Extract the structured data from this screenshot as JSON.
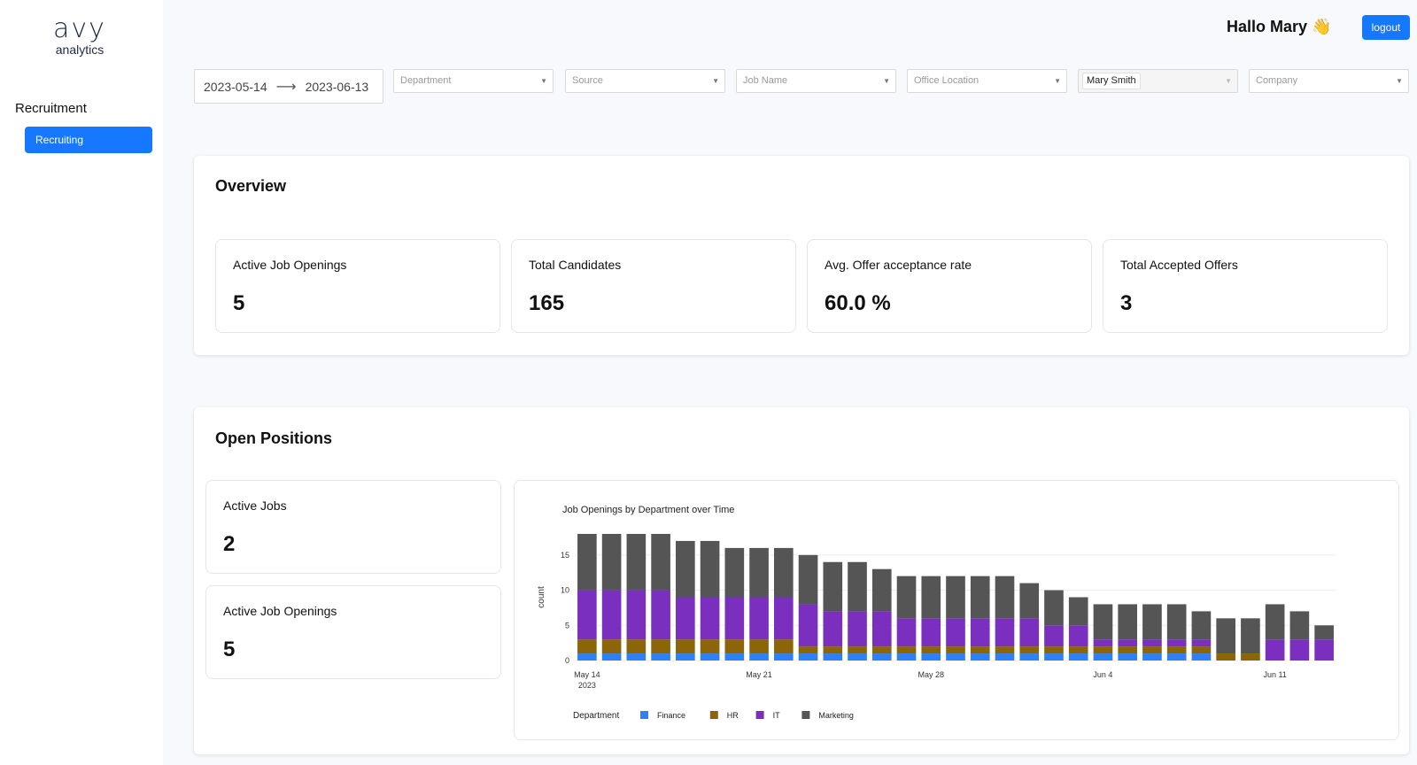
{
  "sidebar": {
    "logo_mark": "avy",
    "logo_sub": "analytics",
    "section_title": "Recruitment",
    "items": [
      {
        "label": "Recruiting",
        "active": true
      }
    ]
  },
  "header": {
    "greeting": "Hallo Mary 👋",
    "logout_label": "logout"
  },
  "filters": {
    "date_start": "2023-05-14",
    "date_end": "2023-06-13",
    "department_placeholder": "Department",
    "source_placeholder": "Source",
    "job_name_placeholder": "Job Name",
    "office_location_placeholder": "Office Location",
    "user_value": "Mary Smith",
    "company_placeholder": "Company"
  },
  "overview": {
    "title": "Overview",
    "metrics": [
      {
        "label": "Active Job Openings",
        "value": "5"
      },
      {
        "label": "Total Candidates",
        "value": "165"
      },
      {
        "label": "Avg. Offer acceptance rate",
        "value": "60.0 %"
      },
      {
        "label": "Total Accepted Offers",
        "value": "3"
      }
    ]
  },
  "open_positions": {
    "title": "Open Positions",
    "metrics": [
      {
        "label": "Active Jobs",
        "value": "2"
      },
      {
        "label": "Active Job Openings",
        "value": "5"
      }
    ]
  },
  "colors": {
    "accent": "#1677ff",
    "finance": "#2f7ff6",
    "hr": "#8b6508",
    "it": "#7b2fbe",
    "marketing": "#555555"
  },
  "chart_data": {
    "type": "bar",
    "stacked": true,
    "title": "Job Openings by Department over Time",
    "ylabel": "count",
    "xlabel": "",
    "ylim": [
      0,
      18
    ],
    "yticks": [
      0,
      5,
      10,
      15
    ],
    "xtick_labels": [
      {
        "index": 0,
        "label": "May 14",
        "sublabel": "2023"
      },
      {
        "index": 7,
        "label": "May 21",
        "sublabel": ""
      },
      {
        "index": 14,
        "label": "May 28",
        "sublabel": ""
      },
      {
        "index": 21,
        "label": "Jun 4",
        "sublabel": ""
      },
      {
        "index": 28,
        "label": "Jun 11",
        "sublabel": ""
      }
    ],
    "categories": [
      "2023-05-14",
      "2023-05-15",
      "2023-05-16",
      "2023-05-17",
      "2023-05-18",
      "2023-05-19",
      "2023-05-20",
      "2023-05-21",
      "2023-05-22",
      "2023-05-23",
      "2023-05-24",
      "2023-05-25",
      "2023-05-26",
      "2023-05-27",
      "2023-05-28",
      "2023-05-29",
      "2023-05-30",
      "2023-05-31",
      "2023-06-01",
      "2023-06-02",
      "2023-06-03",
      "2023-06-04",
      "2023-06-05",
      "2023-06-06",
      "2023-06-07",
      "2023-06-08",
      "2023-06-09",
      "2023-06-10",
      "2023-06-11",
      "2023-06-12",
      "2023-06-13"
    ],
    "legend_title": "Department",
    "legend_position": "bottom",
    "series": [
      {
        "name": "Finance",
        "values": [
          1,
          1,
          1,
          1,
          1,
          1,
          1,
          1,
          1,
          1,
          1,
          1,
          1,
          1,
          1,
          1,
          1,
          1,
          1,
          1,
          1,
          1,
          1,
          1,
          1,
          1,
          0,
          0,
          0,
          0,
          0
        ]
      },
      {
        "name": "HR",
        "values": [
          2,
          2,
          2,
          2,
          2,
          2,
          2,
          2,
          2,
          1,
          1,
          1,
          1,
          1,
          1,
          1,
          1,
          1,
          1,
          1,
          1,
          1,
          1,
          1,
          1,
          1,
          1,
          1,
          0,
          0,
          0
        ]
      },
      {
        "name": "IT",
        "values": [
          7,
          7,
          7,
          7,
          6,
          6,
          6,
          6,
          6,
          6,
          5,
          5,
          5,
          4,
          4,
          4,
          4,
          4,
          4,
          3,
          3,
          1,
          1,
          1,
          1,
          1,
          0,
          0,
          3,
          3,
          3
        ]
      },
      {
        "name": "Marketing",
        "values": [
          8,
          8,
          8,
          8,
          8,
          8,
          7,
          7,
          7,
          7,
          7,
          7,
          6,
          6,
          6,
          6,
          6,
          6,
          5,
          5,
          4,
          5,
          5,
          5,
          5,
          4,
          5,
          5,
          5,
          4,
          2
        ]
      }
    ]
  }
}
